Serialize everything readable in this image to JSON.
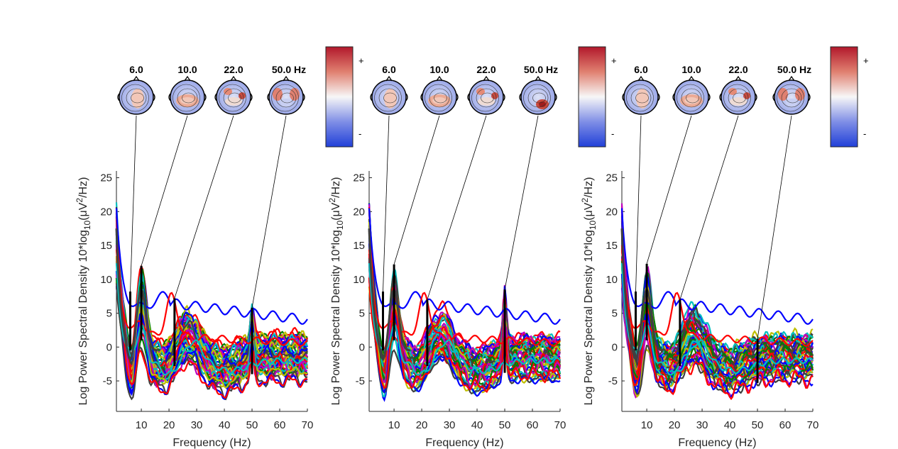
{
  "chart_data": [
    {
      "type": "line",
      "xlabel": "Frequency (Hz)",
      "ylabel": "Log Power Spectral Density 10*log",
      "ylabel_sub": "10",
      "ylabel_tail": "(μV",
      "ylabel_sup": "2",
      "ylabel_end": "/Hz)",
      "xlim": [
        1,
        70
      ],
      "ylim": [
        -9.5,
        26
      ],
      "xticks": [
        10,
        20,
        30,
        40,
        50,
        60,
        70
      ],
      "yticks": [
        -5,
        0,
        5,
        10,
        15,
        20,
        25
      ],
      "topo_freqs": [
        "6.0",
        "10.0",
        "22.0",
        "50.0 Hz"
      ],
      "topo_freq_values": [
        6,
        10,
        22,
        50
      ],
      "colorbar_labels": [
        "+",
        "-"
      ],
      "line_noise_peak": 6.0,
      "markers": [
        {
          "x": 6,
          "ymin": -0.5,
          "ymax": 8.2
        },
        {
          "x": 10,
          "ymin": 1.0,
          "ymax": 12.0
        },
        {
          "x": 22,
          "ymin": -2.8,
          "ymax": 7.2
        },
        {
          "x": 50,
          "ymin": -4.0,
          "ymax": 5.8
        }
      ]
    },
    {
      "type": "line",
      "xlabel": "Frequency (Hz)",
      "ylabel": "Log Power Spectral Density 10*log",
      "ylabel_sub": "10",
      "ylabel_tail": "(μV",
      "ylabel_sup": "2",
      "ylabel_end": "/Hz)",
      "xlim": [
        1,
        70
      ],
      "ylim": [
        -9.5,
        26
      ],
      "xticks": [
        10,
        20,
        30,
        40,
        50,
        60,
        70
      ],
      "yticks": [
        -5,
        0,
        5,
        10,
        15,
        20,
        25
      ],
      "topo_freqs": [
        "6.0",
        "10.0",
        "22.0",
        "50.0 Hz"
      ],
      "topo_freq_values": [
        6,
        10,
        22,
        50
      ],
      "colorbar_labels": [
        "+",
        "-"
      ],
      "line_noise_peak": 8.5,
      "markers": [
        {
          "x": 6,
          "ymin": -0.5,
          "ymax": 8.2
        },
        {
          "x": 10,
          "ymin": 1.0,
          "ymax": 12.2
        },
        {
          "x": 22,
          "ymin": -2.8,
          "ymax": 7.0
        },
        {
          "x": 50,
          "ymin": -3.8,
          "ymax": 8.5
        }
      ]
    },
    {
      "type": "line",
      "xlabel": "Frequency (Hz)",
      "ylabel": "Log Power Spectral Density 10*log",
      "ylabel_sub": "10",
      "ylabel_tail": "(μV",
      "ylabel_sup": "2",
      "ylabel_end": "/Hz)",
      "xlim": [
        1,
        70
      ],
      "ylim": [
        -9.5,
        26
      ],
      "xticks": [
        10,
        20,
        30,
        40,
        50,
        60,
        70
      ],
      "yticks": [
        -5,
        0,
        5,
        10,
        15,
        20,
        25
      ],
      "topo_freqs": [
        "6.0",
        "10.0",
        "22.0",
        "50.0 Hz"
      ],
      "topo_freq_values": [
        6,
        10,
        22,
        50
      ],
      "colorbar_labels": [
        "+",
        "-"
      ],
      "line_noise_peak": 0.0,
      "markers": [
        {
          "x": 6,
          "ymin": -0.5,
          "ymax": 8.2
        },
        {
          "x": 10,
          "ymin": 1.0,
          "ymax": 12.3
        },
        {
          "x": 22,
          "ymin": -2.8,
          "ymax": 7.0
        },
        {
          "x": 50,
          "ymin": -5.3,
          "ymax": 1.2
        }
      ]
    }
  ],
  "series_colors": [
    "#0000ff",
    "#ff0000",
    "#008000",
    "#00bfbf",
    "#bf00bf",
    "#bfbf00",
    "#404040"
  ]
}
